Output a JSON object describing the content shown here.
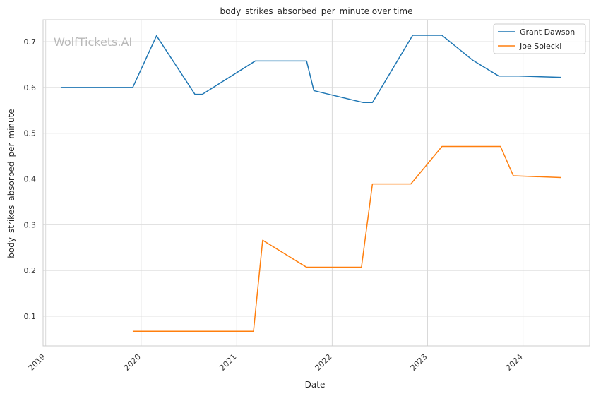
{
  "chart_data": {
    "type": "line",
    "title": "body_strikes_absorbed_per_minute over time",
    "xlabel": "Date",
    "ylabel": "body_strikes_absorbed_per_minute",
    "watermark": "WolfTickets.AI",
    "x_axis_kind": "date",
    "xlim": [
      "2018-12-22",
      "2024-09-12"
    ],
    "ylim": [
      0.035,
      0.748
    ],
    "x_ticks": [
      "2019",
      "2020",
      "2021",
      "2022",
      "2023",
      "2024"
    ],
    "x_tick_dates": [
      "2019-01-01",
      "2020-01-01",
      "2021-01-01",
      "2022-01-01",
      "2023-01-01",
      "2024-01-01"
    ],
    "y_ticks": [
      "0.1",
      "0.2",
      "0.3",
      "0.4",
      "0.5",
      "0.6",
      "0.7"
    ],
    "y_tick_values": [
      0.1,
      0.2,
      0.3,
      0.4,
      0.5,
      0.6,
      0.7
    ],
    "grid": true,
    "legend_position": "top-right",
    "series": [
      {
        "name": "Grant Dawson",
        "color": "#1f77b4",
        "points": [
          [
            "2019-03-02",
            0.6
          ],
          [
            "2019-11-30",
            0.6
          ],
          [
            "2020-02-29",
            0.713
          ],
          [
            "2020-07-25",
            0.585
          ],
          [
            "2020-08-22",
            0.585
          ],
          [
            "2021-03-13",
            0.658
          ],
          [
            "2021-09-25",
            0.658
          ],
          [
            "2021-10-23",
            0.593
          ],
          [
            "2022-04-30",
            0.567
          ],
          [
            "2022-06-04",
            0.567
          ],
          [
            "2022-11-05",
            0.714
          ],
          [
            "2023-02-25",
            0.714
          ],
          [
            "2023-06-24",
            0.659
          ],
          [
            "2023-09-30",
            0.625
          ],
          [
            "2023-12-16",
            0.625
          ],
          [
            "2024-05-25",
            0.622
          ]
        ]
      },
      {
        "name": "Joe Solecki",
        "color": "#ff7f0e",
        "points": [
          [
            "2019-11-30",
            0.067
          ],
          [
            "2021-03-06",
            0.067
          ],
          [
            "2021-04-10",
            0.266
          ],
          [
            "2021-09-25",
            0.207
          ],
          [
            "2022-04-23",
            0.207
          ],
          [
            "2022-06-04",
            0.389
          ],
          [
            "2022-10-29",
            0.389
          ],
          [
            "2023-02-25",
            0.471
          ],
          [
            "2023-10-07",
            0.471
          ],
          [
            "2023-11-25",
            0.407
          ],
          [
            "2024-05-25",
            0.403
          ]
        ]
      }
    ]
  }
}
